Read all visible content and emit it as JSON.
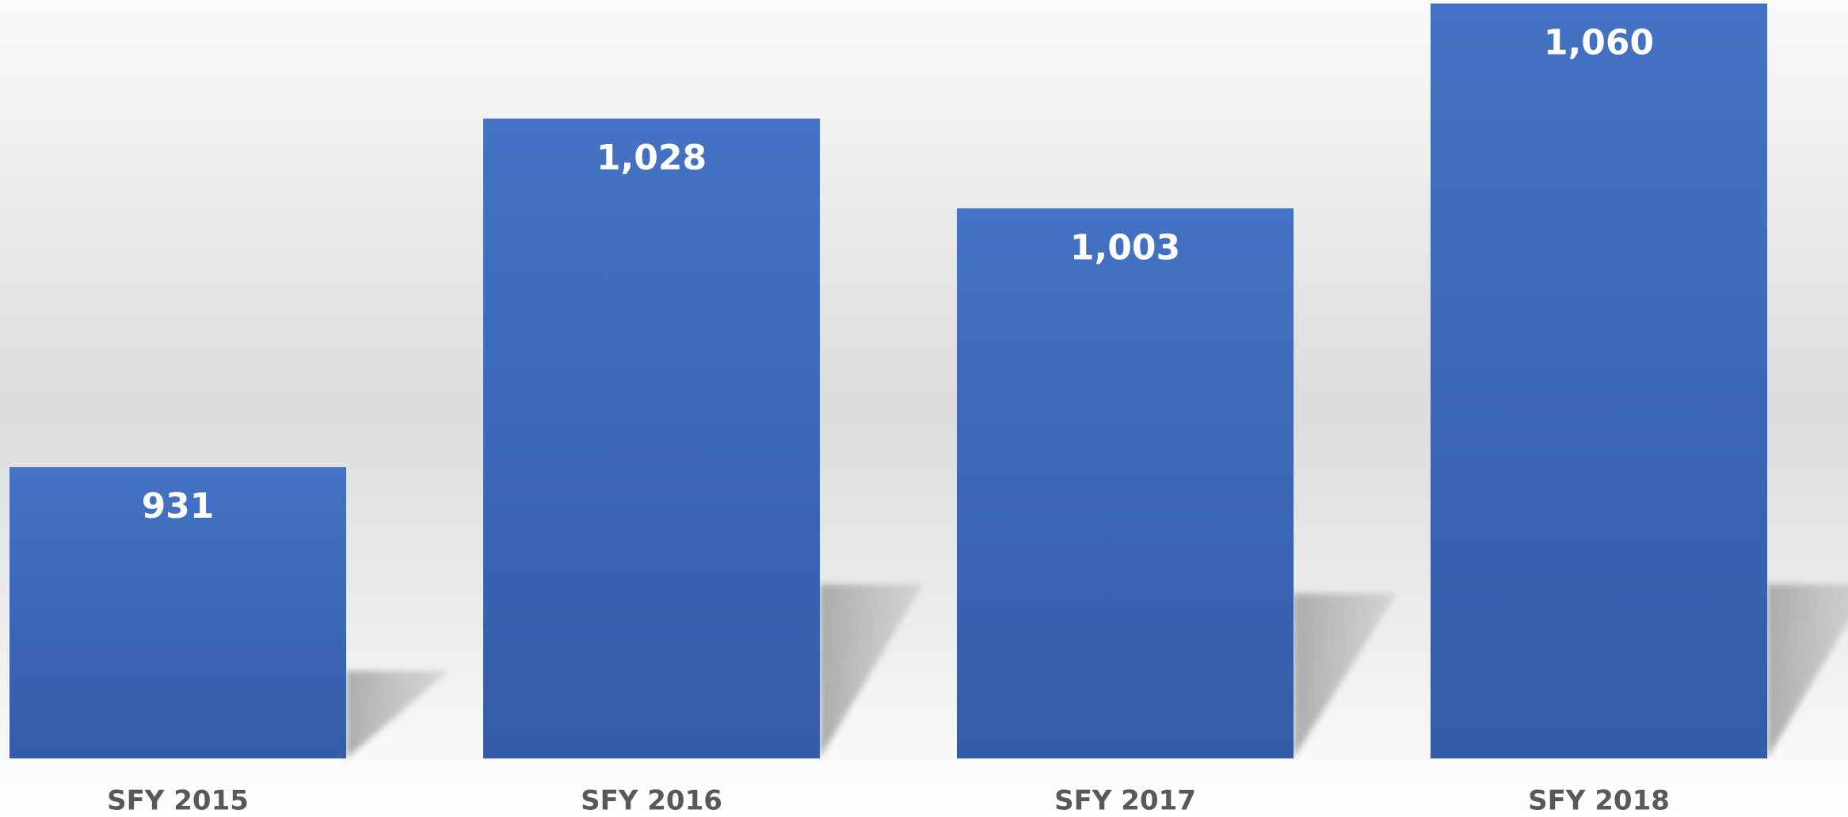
{
  "chart_data": {
    "type": "bar",
    "categories": [
      "SFY 2015",
      "SFY 2016",
      "SFY 2017",
      "SFY 2018"
    ],
    "values": [
      931,
      1028,
      1003,
      1060
    ],
    "value_labels": [
      "931",
      "1,028",
      "1,003",
      "1,060"
    ],
    "color": "#4472c4",
    "ylim": [
      850,
      1061
    ]
  }
}
